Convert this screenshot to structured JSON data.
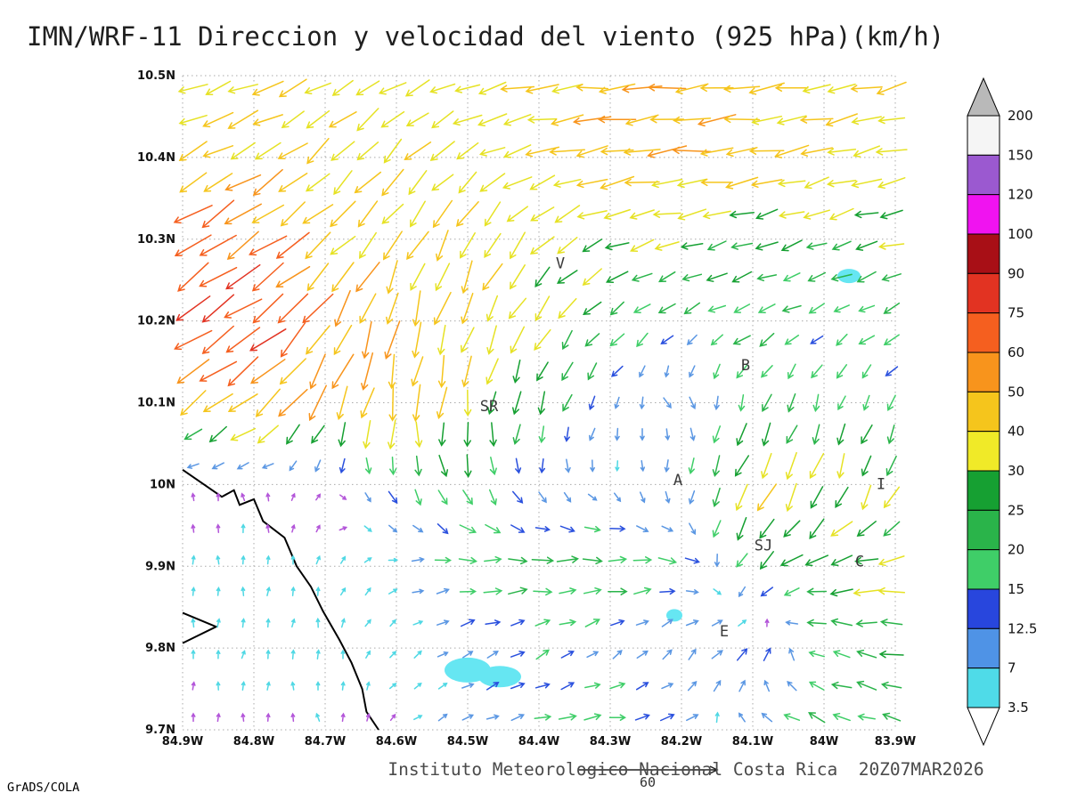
{
  "title": "IMN/WRF-11 Direccion y velocidad del viento (925 hPa)(km/h)",
  "footer": "Instituto Meteorologico Nacional Costa Rica  20Z07MAR2026",
  "credit": "GrADS/COLA",
  "chart_data": {
    "type": "quiver",
    "subtype": "wind-vector-map",
    "units": "km/h",
    "level": "925 hPa",
    "valid_time": "20Z07MAR2026",
    "x_axis": {
      "ticks": [
        "84.9W",
        "84.8W",
        "84.7W",
        "84.6W",
        "84.5W",
        "84.4W",
        "84.3W",
        "84.2W",
        "84.1W",
        "84W",
        "83.9W"
      ],
      "range_west_deg": [
        84.9,
        83.9
      ]
    },
    "y_axis": {
      "ticks": [
        "9.7N",
        "9.8N",
        "9.9N",
        "10N",
        "10.1N",
        "10.2N",
        "10.3N",
        "10.4N",
        "10.5N"
      ],
      "range_deg": [
        9.7,
        10.5
      ]
    },
    "grid_style": "dotted",
    "colorbar": {
      "labels": [
        "200",
        "150",
        "120",
        "100",
        "90",
        "75",
        "60",
        "50",
        "40",
        "30",
        "25",
        "20",
        "15",
        "12.5",
        "7",
        "3.5"
      ],
      "segment_colors_top_to_bottom": [
        "#f5f5f5",
        "#9b59d0",
        "#f013f0",
        "#a80f16",
        "#e23322",
        "#f55f1f",
        "#f8941c",
        "#f5c51c",
        "#f0ea28",
        "#16a032",
        "#2ab44a",
        "#3fce68",
        "#2846dd",
        "#4f93e6",
        "#4fdbe8"
      ],
      "over_color": "#b9b9b9",
      "under_color": "#ffffff"
    },
    "speed_colors": [
      {
        "max": 3.5,
        "color": "#b355d9"
      },
      {
        "max": 7,
        "color": "#4fd8e4"
      },
      {
        "max": 12.5,
        "color": "#5b97e3"
      },
      {
        "max": 15,
        "color": "#2a50de"
      },
      {
        "max": 20,
        "color": "#3fce68"
      },
      {
        "max": 25,
        "color": "#2ab44a"
      },
      {
        "max": 30,
        "color": "#16a032"
      },
      {
        "max": 40,
        "color": "#e6e224"
      },
      {
        "max": 50,
        "color": "#f5c51c"
      },
      {
        "max": 60,
        "color": "#f8941c"
      },
      {
        "max": 75,
        "color": "#f55f1f"
      },
      {
        "max": 90,
        "color": "#e23322"
      },
      {
        "max": 100,
        "color": "#b5121f"
      },
      {
        "max": 120,
        "color": "#f013f0"
      },
      {
        "max": 9999,
        "color": "#9b59d0"
      }
    ],
    "reference_vector": {
      "value": 60,
      "label": "60"
    },
    "stations": [
      {
        "label": "V",
        "lon_w": 84.37,
        "lat": 10.27
      },
      {
        "label": "B",
        "lon_w": 84.11,
        "lat": 10.145
      },
      {
        "label": "SR",
        "lon_w": 84.47,
        "lat": 10.095
      },
      {
        "label": "A",
        "lon_w": 84.205,
        "lat": 10.005
      },
      {
        "label": "SJ",
        "lon_w": 84.085,
        "lat": 9.925
      },
      {
        "label": "C",
        "lon_w": 83.95,
        "lat": 9.905
      },
      {
        "label": "E",
        "lon_w": 84.14,
        "lat": 9.82
      },
      {
        "label": "I",
        "lon_w": 83.92,
        "lat": 10.0
      }
    ],
    "coastline_lonlat": [
      [
        84.9,
        10.018
      ],
      [
        84.845,
        9.985
      ],
      [
        84.828,
        9.993
      ],
      [
        84.82,
        9.975
      ],
      [
        84.8,
        9.982
      ],
      [
        84.787,
        9.955
      ],
      [
        84.757,
        9.935
      ],
      [
        84.74,
        9.9
      ],
      [
        84.72,
        9.875
      ],
      [
        84.703,
        9.845
      ],
      [
        84.68,
        9.81
      ],
      [
        84.663,
        9.782
      ],
      [
        84.648,
        9.75
      ],
      [
        84.642,
        9.722
      ],
      [
        84.625,
        9.7
      ]
    ],
    "peninsula_lonlat": [
      [
        84.9,
        9.843
      ],
      [
        84.853,
        9.826
      ],
      [
        84.9,
        9.806
      ]
    ],
    "water_color": "#66e6f2",
    "lakes": [
      {
        "lon_w": 84.5,
        "lat": 9.773,
        "rx": 26,
        "ry": 14
      },
      {
        "lon_w": 84.455,
        "lat": 9.765,
        "rx": 24,
        "ry": 12
      },
      {
        "lon_w": 84.21,
        "lat": 9.84,
        "rx": 9,
        "ry": 7
      },
      {
        "lon_w": 83.965,
        "lat": 10.255,
        "rx": 13,
        "ry": 8
      }
    ],
    "wind_grid": {
      "lons_w": [
        84.9,
        84.8,
        84.7,
        84.6,
        84.5,
        84.4,
        84.3,
        84.2,
        84.1,
        84.0,
        83.9
      ],
      "lats": [
        9.7,
        9.8,
        9.9,
        10.0,
        10.1,
        10.2,
        10.3,
        10.4,
        10.5
      ],
      "u": [
        [
          0,
          0,
          -1,
          2,
          8,
          16,
          20,
          12,
          -12,
          -18,
          -20
        ],
        [
          0,
          1,
          0,
          3,
          9,
          12,
          8,
          6,
          14,
          -18,
          -26
        ],
        [
          0,
          0,
          1,
          5,
          20,
          24,
          24,
          18,
          -16,
          -28,
          -33
        ],
        [
          0,
          -1,
          2,
          6,
          8,
          3,
          2,
          -3,
          -18,
          -12,
          -10
        ],
        [
          -33,
          -43,
          -20,
          -6,
          -5,
          -8,
          -5,
          7,
          -8,
          -5,
          -8
        ],
        [
          -62,
          -68,
          -30,
          -10,
          -14,
          -19,
          -17,
          -14,
          -19,
          -14,
          -17
        ],
        [
          -58,
          -53,
          -34,
          -24,
          -19,
          -24,
          -29,
          -27,
          -24,
          -24,
          -27
        ],
        [
          -34,
          -37,
          -29,
          -27,
          -29,
          -39,
          -47,
          -49,
          -44,
          -39,
          -37
        ],
        [
          -37,
          -39,
          -31,
          -29,
          -34,
          -41,
          -47,
          -49,
          -44,
          -39,
          -35
        ]
      ],
      "v": [
        [
          3,
          3,
          3,
          2,
          4,
          3,
          2,
          5,
          6,
          8,
          4
        ],
        [
          4,
          4,
          5,
          3,
          5,
          7,
          6,
          8,
          12,
          6,
          5
        ],
        [
          4,
          4,
          4,
          2,
          1,
          0,
          2,
          -2,
          -18,
          -8,
          -5
        ],
        [
          2,
          3,
          1,
          -14,
          -21,
          -10,
          -6,
          -11,
          -38,
          -33,
          -28
        ],
        [
          -24,
          -30,
          -44,
          -48,
          -34,
          -24,
          -10,
          -8,
          -19,
          -17,
          -14
        ],
        [
          -44,
          -49,
          -44,
          -48,
          -38,
          -28,
          -14,
          -9,
          -9,
          -7,
          -9
        ],
        [
          -38,
          -34,
          -29,
          -34,
          -38,
          -24,
          -11,
          -7,
          -7,
          -9,
          -7
        ],
        [
          -19,
          -21,
          -27,
          -29,
          -19,
          -9,
          -7,
          -5,
          -7,
          -9,
          -7
        ],
        [
          -11,
          -14,
          -17,
          -14,
          -9,
          -7,
          -4,
          -4,
          -5,
          -7,
          -9
        ]
      ]
    }
  }
}
